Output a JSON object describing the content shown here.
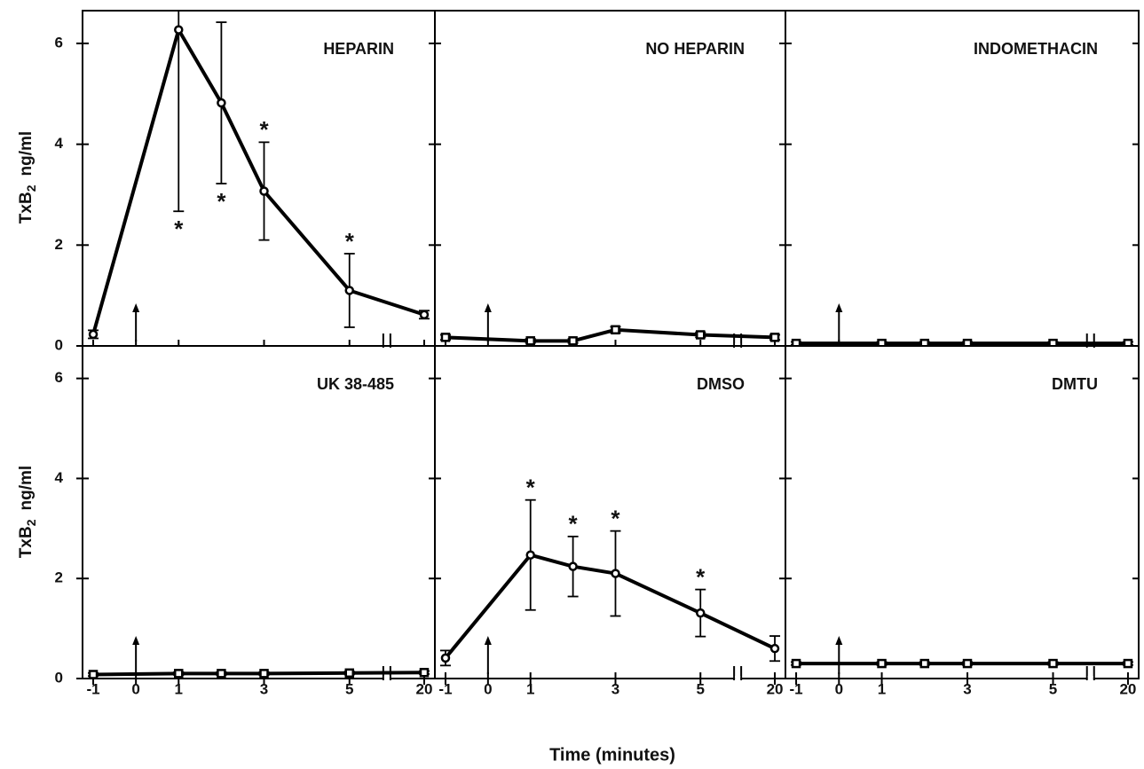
{
  "xlabel": "Time  (minutes)",
  "ylabel": "TxB",
  "ylabel_sub": "2",
  "ylabel_unit": "ng/ml",
  "chart_data": [
    {
      "type": "line",
      "title": "HEPARIN",
      "marker": "circle",
      "color": "#000000",
      "x_break": true,
      "x": [
        -1,
        1,
        2,
        3,
        5,
        20
      ],
      "values": [
        0.23,
        6.27,
        4.82,
        3.07,
        1.1,
        0.62
      ],
      "errors": [
        0.08,
        3.6,
        1.6,
        0.97,
        0.73,
        0.08
      ],
      "annotations": [
        null,
        "*",
        "*",
        "*",
        "*",
        null
      ],
      "xlim": [
        -1.25,
        20.25
      ],
      "xticks": [
        -1,
        0,
        1,
        3,
        5,
        20
      ],
      "ylim": [
        0,
        6.65
      ],
      "yticks": [
        0,
        2,
        4,
        6
      ]
    },
    {
      "type": "line",
      "title": "NO HEPARIN",
      "marker": "square",
      "color": "#000000",
      "x_break": true,
      "x": [
        -1,
        1,
        2,
        3,
        5,
        20
      ],
      "values": [
        0.17,
        0.1,
        0.1,
        0.32,
        0.22,
        0.17
      ],
      "errors": [
        0.05,
        0.04,
        0.04,
        0.06,
        0.05,
        0.05
      ],
      "xlim": [
        -1.25,
        20.25
      ],
      "xticks": [
        -1,
        0,
        1,
        3,
        5,
        20
      ],
      "ylim": [
        0,
        6.65
      ],
      "yticks": [
        0,
        2,
        4,
        6
      ]
    },
    {
      "type": "line",
      "title": "INDOMETHACIN",
      "marker": "square",
      "color": "#000000",
      "x_break": true,
      "x": [
        -1,
        1,
        2,
        3,
        5,
        20
      ],
      "values": [
        0.05,
        0.05,
        0.05,
        0.05,
        0.05,
        0.05
      ],
      "errors": [
        0.03,
        0.03,
        0.03,
        0.03,
        0.03,
        0.03
      ],
      "xlim": [
        -1.25,
        20.25
      ],
      "xticks": [
        -1,
        0,
        1,
        3,
        5,
        20
      ],
      "ylim": [
        0,
        6.65
      ],
      "yticks": [
        0,
        2,
        4,
        6
      ]
    },
    {
      "type": "line",
      "title": "UK 38-485",
      "marker": "square",
      "color": "#000000",
      "x_break": true,
      "x": [
        -1,
        1,
        2,
        3,
        5,
        20
      ],
      "values": [
        0.08,
        0.1,
        0.1,
        0.1,
        0.11,
        0.12
      ],
      "errors": [
        0.03,
        0.03,
        0.03,
        0.03,
        0.03,
        0.03
      ],
      "xlim": [
        -1.25,
        20.25
      ],
      "xticks": [
        -1,
        0,
        1,
        3,
        5,
        20
      ],
      "ylim": [
        0,
        6.65
      ],
      "yticks": [
        0,
        2,
        4,
        6
      ]
    },
    {
      "type": "line",
      "title": "DMSO",
      "marker": "circle",
      "color": "#000000",
      "x_break": true,
      "x": [
        -1,
        1,
        2,
        3,
        5,
        20
      ],
      "values": [
        0.41,
        2.47,
        2.24,
        2.1,
        1.31,
        0.6
      ],
      "errors": [
        0.15,
        1.1,
        0.6,
        0.85,
        0.47,
        0.25
      ],
      "annotations": [
        null,
        "*",
        "*",
        "*",
        "*",
        null
      ],
      "xlim": [
        -1.25,
        20.25
      ],
      "xticks": [
        -1,
        0,
        1,
        3,
        5,
        20
      ],
      "ylim": [
        0,
        6.65
      ],
      "yticks": [
        0,
        2,
        4,
        6
      ]
    },
    {
      "type": "line",
      "title": "DMTU",
      "marker": "square",
      "color": "#000000",
      "x_break": true,
      "x": [
        -1,
        1,
        2,
        3,
        5,
        20
      ],
      "values": [
        0.3,
        0.3,
        0.3,
        0.3,
        0.3,
        0.3
      ],
      "errors": [
        0.03,
        0.03,
        0.03,
        0.03,
        0.03,
        0.03
      ],
      "xlim": [
        -1.25,
        20.25
      ],
      "xticks": [
        -1,
        0,
        1,
        3,
        5,
        20
      ],
      "ylim": [
        0,
        6.65
      ],
      "yticks": [
        0,
        2,
        4,
        6
      ]
    }
  ]
}
